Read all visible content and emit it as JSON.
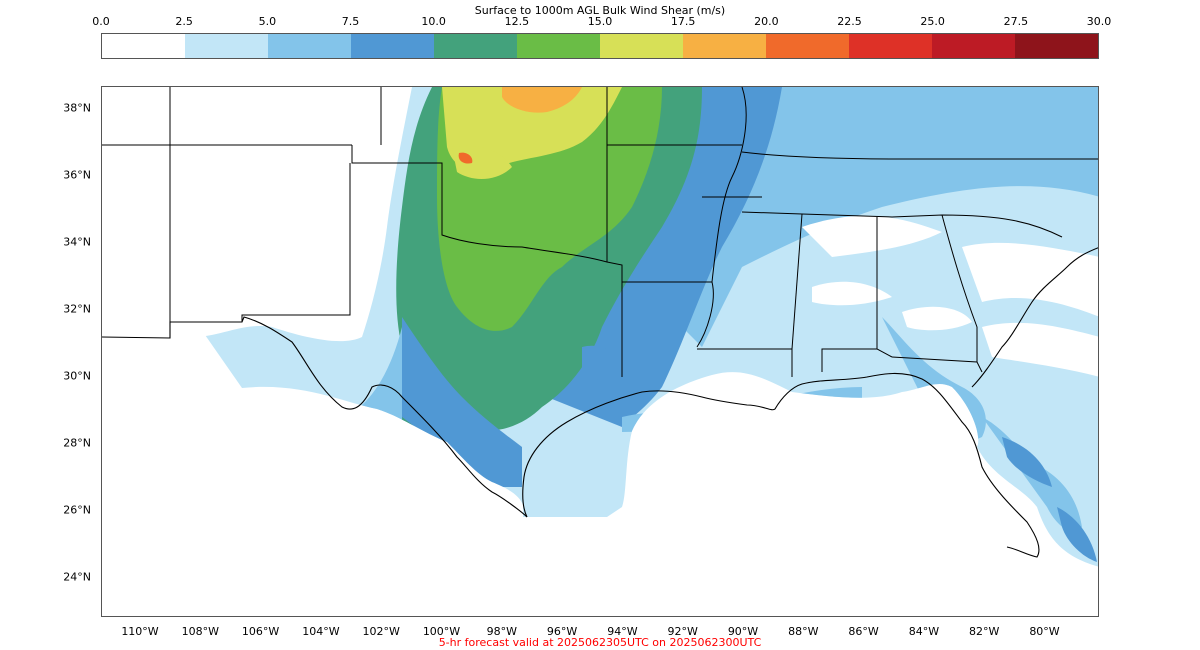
{
  "title": "Surface to 1000m AGL Bulk Wind Shear (m/s)",
  "colorbar": {
    "ticks": [
      "0.0",
      "2.5",
      "5.0",
      "7.5",
      "10.0",
      "12.5",
      "15.0",
      "17.5",
      "20.0",
      "22.5",
      "25.0",
      "27.5",
      "30.0"
    ],
    "colors": [
      "#ffffff",
      "#c2e6f7",
      "#83c4ea",
      "#5098d4",
      "#43a27c",
      "#6abd46",
      "#d7e057",
      "#f7b043",
      "#f06a2b",
      "#de3127",
      "#bd1b25",
      "#8e141b"
    ]
  },
  "latitudes": [
    "38°N",
    "36°N",
    "34°N",
    "32°N",
    "30°N",
    "28°N",
    "26°N",
    "24°N"
  ],
  "longitudes": [
    "110°W",
    "108°W",
    "106°W",
    "104°W",
    "102°W",
    "100°W",
    "98°W",
    "96°W",
    "94°W",
    "92°W",
    "90°W",
    "88°W",
    "86°W",
    "84°W",
    "82°W",
    "80°W"
  ],
  "footer": "5-hr forecast valid at 2025062305UTC on 2025062300UTC"
}
